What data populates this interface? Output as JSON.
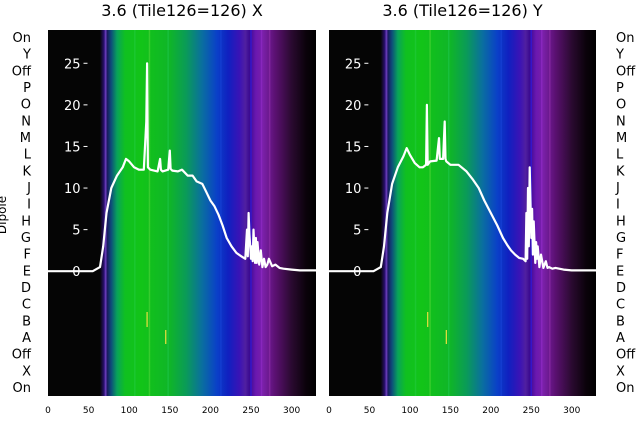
{
  "chart_data": [
    {
      "type": "line",
      "title": "3.6 (Tile126=126) X",
      "ylabel": "Dipole",
      "xlim": [
        0,
        330
      ],
      "ylim": [
        -15,
        29
      ],
      "dipole_labels": [
        "On",
        "X",
        "Off",
        "A",
        "B",
        "C",
        "D",
        "E",
        "F",
        "G",
        "H",
        "I",
        "J",
        "K",
        "L",
        "M",
        "N",
        "O",
        "P",
        "Off",
        "Y",
        "On"
      ],
      "x_ticks": [
        0,
        50,
        100,
        150,
        200,
        250,
        300
      ],
      "y_ticks": [
        0,
        5,
        10,
        15,
        20,
        25
      ],
      "background": "waterfall heatmap (black → blue → green → blue → purple)",
      "series": [
        {
          "color": "#ffffff",
          "x": [
            0,
            55,
            64,
            68,
            72,
            78,
            85,
            92,
            96,
            100,
            106,
            112,
            118,
            121,
            122,
            123,
            126,
            135,
            138,
            139,
            141,
            148,
            150,
            151,
            153,
            160,
            165,
            172,
            178,
            183,
            190,
            195,
            200,
            205,
            210,
            215,
            220,
            226,
            232,
            238,
            243,
            245,
            246,
            247,
            248,
            250,
            251,
            252,
            253,
            255,
            256,
            257,
            258,
            260,
            262,
            264,
            266,
            268,
            270,
            272,
            276,
            280,
            285,
            290,
            300,
            310,
            320,
            330
          ],
          "y": [
            0,
            0,
            0.5,
            3,
            7,
            10,
            11.5,
            12.5,
            13.5,
            13.2,
            12.5,
            12.2,
            12.2,
            18,
            25,
            12.5,
            12.2,
            12.0,
            13.5,
            12.2,
            12.0,
            12.2,
            14.5,
            12.3,
            12.1,
            12.0,
            12.2,
            11.5,
            11.5,
            10.8,
            10.5,
            9.5,
            8.5,
            7.8,
            6.8,
            5.5,
            4.0,
            3.0,
            2.2,
            1.8,
            1.5,
            5.0,
            1.8,
            7.0,
            4.5,
            1.5,
            3.0,
            1.2,
            5.0,
            1.0,
            4.0,
            1.0,
            3.5,
            0.8,
            2.5,
            0.5,
            1.5,
            0.5,
            0.8,
            1.5,
            0.6,
            0.8,
            0.4,
            0.3,
            0.2,
            0.1,
            0.1,
            0.1
          ]
        }
      ]
    },
    {
      "type": "line",
      "title": "3.6 (Tile126=126) Y",
      "xlim": [
        0,
        330
      ],
      "ylim": [
        -15,
        29
      ],
      "dipole_labels": [
        "On",
        "X",
        "Off",
        "A",
        "B",
        "C",
        "D",
        "E",
        "F",
        "G",
        "H",
        "I",
        "J",
        "K",
        "L",
        "M",
        "N",
        "O",
        "P",
        "Off",
        "Y",
        "On"
      ],
      "x_ticks": [
        0,
        50,
        100,
        150,
        200,
        250,
        300
      ],
      "y_ticks": [
        0,
        5,
        10,
        15,
        20,
        25
      ],
      "background": "waterfall heatmap (black → blue → green → blue → purple)",
      "series": [
        {
          "color": "#ffffff",
          "x": [
            0,
            55,
            64,
            68,
            72,
            78,
            85,
            92,
            96,
            100,
            106,
            112,
            116,
            120,
            121,
            122,
            125,
            133,
            136,
            137,
            138,
            141,
            143,
            144,
            145,
            150,
            160,
            170,
            178,
            185,
            192,
            200,
            208,
            215,
            220,
            225,
            230,
            235,
            240,
            243,
            244,
            245,
            246,
            247,
            248,
            250,
            251,
            252,
            253,
            255,
            256,
            257,
            258,
            260,
            262,
            265,
            268,
            270,
            272,
            276,
            280,
            290,
            300,
            310,
            320,
            330
          ],
          "y": [
            0,
            0,
            0.5,
            3,
            7,
            10.5,
            12.5,
            13.8,
            14.8,
            14.0,
            13.0,
            12.5,
            12.5,
            12.8,
            20,
            12.8,
            13.2,
            13.3,
            16,
            13.5,
            13.5,
            13.5,
            18,
            13.5,
            13.2,
            12.8,
            12.8,
            12.0,
            11.0,
            10.0,
            8.5,
            7.0,
            5.5,
            4.0,
            3.2,
            2.5,
            2.0,
            1.6,
            1.5,
            1.2,
            7.0,
            1.5,
            10,
            3.0,
            12.5,
            4.0,
            7.5,
            2.0,
            6.0,
            1.0,
            3.5,
            1.5,
            3.0,
            0.5,
            2.0,
            0.4,
            1.2,
            0.4,
            0.5,
            0.3,
            0.4,
            0.2,
            0.1,
            0.1,
            0.1,
            0.1
          ]
        }
      ]
    }
  ]
}
